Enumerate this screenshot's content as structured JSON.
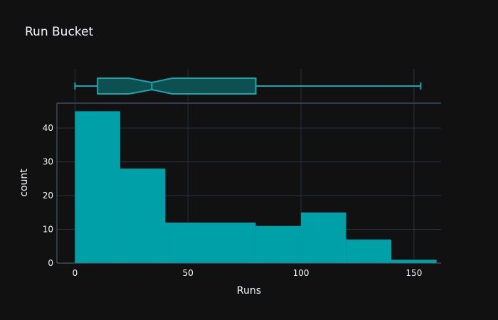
{
  "chart_data": {
    "type": "histogram",
    "title": "Run Bucket",
    "xlabel": "Runs",
    "ylabel": "count",
    "x_ticks": [
      0,
      50,
      100,
      150
    ],
    "y_ticks": [
      0,
      10,
      20,
      30,
      40
    ],
    "xlim": [
      -8,
      162
    ],
    "ylim": [
      0,
      47.4
    ],
    "bins": [
      {
        "start": 0,
        "end": 20,
        "count": 45
      },
      {
        "start": 20,
        "end": 40,
        "count": 28
      },
      {
        "start": 40,
        "end": 60,
        "count": 12
      },
      {
        "start": 60,
        "end": 80,
        "count": 12
      },
      {
        "start": 80,
        "end": 100,
        "count": 11
      },
      {
        "start": 100,
        "end": 120,
        "count": 15
      },
      {
        "start": 120,
        "end": 140,
        "count": 7
      },
      {
        "start": 140,
        "end": 160,
        "count": 1
      }
    ],
    "marginal_box": {
      "min": 0,
      "q1": 10,
      "median": 34,
      "q3": 80,
      "max": 153,
      "notch_low": 24,
      "notch_high": 43
    },
    "grid": true
  },
  "colors": {
    "background": "#111111",
    "bar": "#00a0a8",
    "box_fill": "#0e5a5e",
    "box_line": "#19a7ad",
    "grid": "#283442",
    "axis_line": "#506784",
    "text": "#f2f5fa"
  }
}
